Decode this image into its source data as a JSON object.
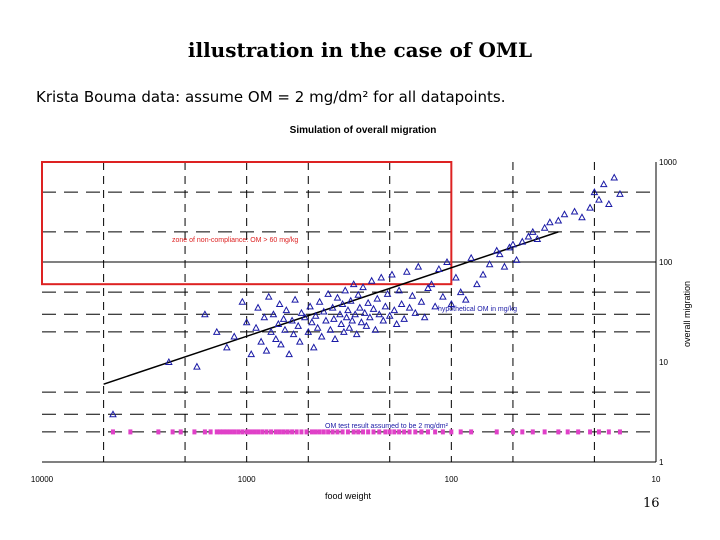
{
  "slide": {
    "title": "illustration in the case of OML",
    "subtitle": "Krista Bouma data: assume OM = 2 mg/dm² for all datapoints.",
    "page_number": "16"
  },
  "chart_data": {
    "type": "scatter",
    "title": "Simulation of overall migration",
    "xlabel": "food weight",
    "ylabel": "overall migration",
    "x_scale": "log",
    "x_reversed": true,
    "y_scale": "log",
    "xlim": [
      10,
      10000
    ],
    "ylim": [
      1,
      1000
    ],
    "x_ticks": [
      "10000",
      "1000",
      "100",
      "10"
    ],
    "y_ticks": [
      "1000",
      "100",
      "10",
      "1"
    ],
    "colors": {
      "points": "#1a1aa6",
      "test_points": "#e040c8",
      "zone": "#dd2222",
      "line": "#000000"
    },
    "annotations": {
      "zone_label": "zone of non-compliance: OM > 60 mg/kg",
      "line_label": "hypothetical OM in mg/kg",
      "test_label": "OM test result assumed to be 2 mg/dm²"
    },
    "zone": {
      "x_min": 10000,
      "x_max": 100,
      "y_min": 60,
      "y_max": 1000
    },
    "series": [
      {
        "role": "hypothetical_om",
        "x": [
          5000,
          30
        ],
        "y": [
          6,
          200
        ]
      },
      {
        "role": "observations",
        "x": [
          4500,
          2400,
          1750,
          1600,
          1400,
          1250,
          1150,
          1050,
          1000,
          950,
          900,
          880,
          850,
          820,
          800,
          780,
          760,
          740,
          720,
          700,
          690,
          680,
          660,
          650,
          640,
          620,
          600,
          590,
          580,
          560,
          550,
          540,
          520,
          500,
          490,
          480,
          470,
          460,
          450,
          440,
          430,
          420,
          410,
          400,
          390,
          380,
          375,
          370,
          360,
          350,
          345,
          340,
          335,
          330,
          325,
          320,
          315,
          310,
          305,
          300,
          295,
          290,
          285,
          280,
          275,
          270,
          265,
          260,
          255,
          250,
          245,
          240,
          235,
          230,
          225,
          220,
          215,
          210,
          205,
          200,
          195,
          190,
          185,
          180,
          175,
          170,
          165,
          160,
          155,
          150,
          145,
          140,
          135,
          130,
          125,
          120,
          115,
          110,
          105,
          100,
          95,
          90,
          85,
          80,
          75,
          70,
          65,
          60,
          58,
          55,
          52,
          50,
          48,
          45,
          42,
          40,
          38,
          35,
          33,
          30,
          28,
          25,
          23,
          21,
          20,
          19,
          18,
          17,
          16,
          15
        ],
        "y": [
          3,
          10,
          9,
          30,
          20,
          14,
          18,
          40,
          25,
          12,
          22,
          35,
          16,
          28,
          13,
          45,
          20,
          30,
          17,
          24,
          38,
          15,
          27,
          21,
          33,
          12,
          26,
          19,
          42,
          23,
          16,
          31,
          28,
          20,
          36,
          25,
          14,
          29,
          22,
          40,
          18,
          32,
          26,
          48,
          21,
          35,
          27,
          17,
          44,
          30,
          24,
          38,
          20,
          52,
          28,
          33,
          22,
          41,
          26,
          60,
          30,
          19,
          47,
          35,
          25,
          56,
          31,
          23,
          39,
          28,
          65,
          34,
          21,
          43,
          30,
          70,
          26,
          36,
          48,
          29,
          75,
          33,
          24,
          52,
          38,
          27,
          80,
          35,
          46,
          31,
          90,
          40,
          28,
          55,
          60,
          36,
          85,
          45,
          100,
          38,
          70,
          50,
          42,
          110,
          60,
          75,
          95,
          130,
          120,
          90,
          140,
          150,
          105,
          160,
          180,
          200,
          170,
          220,
          250,
          260,
          300,
          320,
          280,
          350,
          500,
          420,
          600,
          380,
          700,
          480
        ]
      },
      {
        "role": "om_test_results",
        "x": [
          4500,
          3700,
          2700,
          2300,
          2100,
          1800,
          1600,
          1500,
          1400,
          1350,
          1300,
          1250,
          1200,
          1150,
          1100,
          1050,
          1000,
          960,
          920,
          880,
          840,
          800,
          760,
          720,
          690,
          660,
          630,
          600,
          570,
          540,
          510,
          480,
          460,
          440,
          420,
          400,
          380,
          360,
          340,
          320,
          300,
          285,
          270,
          255,
          240,
          225,
          210,
          200,
          190,
          180,
          170,
          160,
          150,
          140,
          130,
          120,
          110,
          100,
          90,
          80,
          60,
          50,
          45,
          40,
          35,
          30,
          27,
          24,
          21,
          19,
          17,
          15
        ],
        "y": [
          2,
          2,
          2,
          2,
          2,
          2,
          2,
          2,
          2,
          2,
          2,
          2,
          2,
          2,
          2,
          2,
          2,
          2,
          2,
          2,
          2,
          2,
          2,
          2,
          2,
          2,
          2,
          2,
          2,
          2,
          2,
          2,
          2,
          2,
          2,
          2,
          2,
          2,
          2,
          2,
          2,
          2,
          2,
          2,
          2,
          2,
          2,
          2,
          2,
          2,
          2,
          2,
          2,
          2,
          2,
          2,
          2,
          2,
          2,
          2,
          2,
          2,
          2,
          2,
          2,
          2,
          2,
          2,
          2,
          2,
          2,
          2
        ]
      }
    ]
  }
}
